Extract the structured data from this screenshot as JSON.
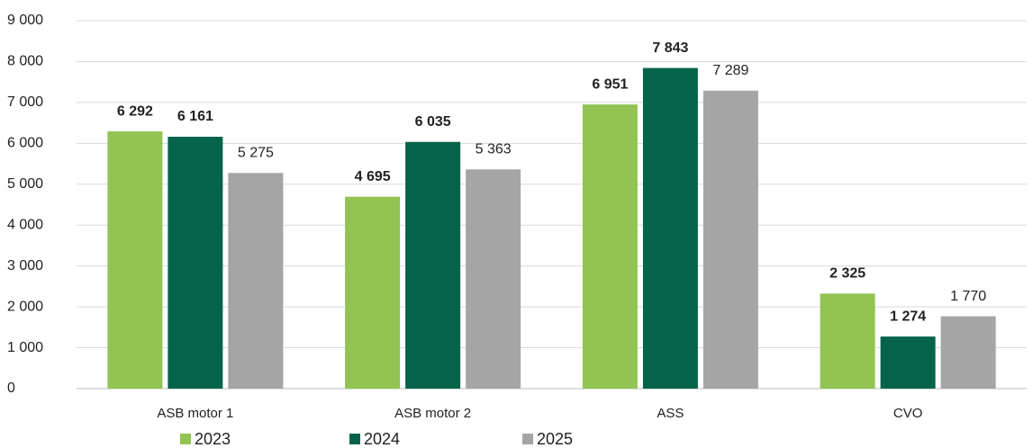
{
  "chart_data": {
    "type": "bar",
    "categories": [
      "ASB motor 1",
      "ASB motor 2",
      "ASS",
      "CVO"
    ],
    "series": [
      {
        "name": "2023",
        "color": "#92c353",
        "values": [
          6292,
          4695,
          6951,
          2325
        ],
        "value_labels": [
          "6 292",
          "4 695",
          "6 951",
          "2 325"
        ]
      },
      {
        "name": "2024",
        "color": "#04634a",
        "values": [
          6161,
          6035,
          7843,
          1274
        ],
        "value_labels": [
          "6 161",
          "6 035",
          "7 843",
          "1 274"
        ]
      },
      {
        "name": "2025",
        "color": "#a5a5a5",
        "values": [
          5275,
          5363,
          7289,
          1770
        ],
        "value_labels": [
          "5 275",
          "5 363",
          "7 289",
          "1 770"
        ]
      }
    ],
    "ylim": [
      0,
      9000
    ],
    "yticks": [
      0,
      {
        "value": 1000,
        "label": "1 000"
      },
      {
        "value": 2000,
        "label": "2 000"
      },
      {
        "value": 3000,
        "label": "3 000"
      },
      {
        "value": 4000,
        "label": "4 000"
      },
      {
        "value": 5000,
        "label": "5 000"
      },
      {
        "value": 6000,
        "label": "6 000"
      },
      {
        "value": 7000,
        "label": "7 000"
      },
      {
        "value": 8000,
        "label": "8 000"
      },
      {
        "value": 9000,
        "label": "9 000"
      }
    ],
    "grid": true,
    "legend": "bottom"
  }
}
